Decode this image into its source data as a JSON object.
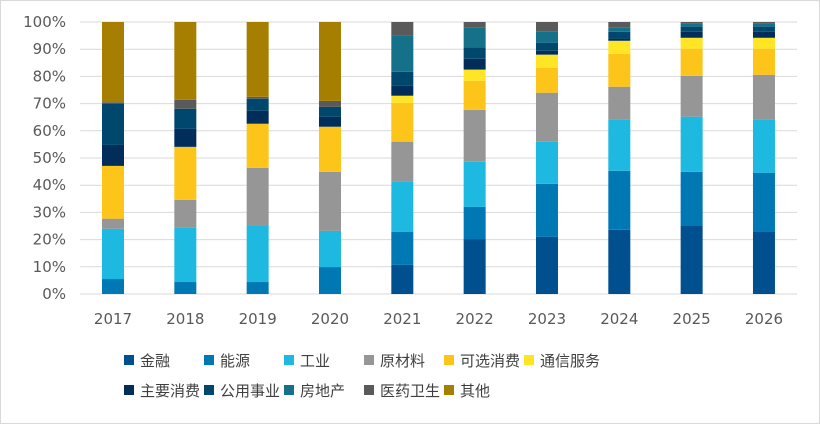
{
  "chart_data": {
    "type": "bar",
    "stacked": true,
    "percent": true,
    "categories": [
      "2017",
      "2018",
      "2019",
      "2020",
      "2021",
      "2022",
      "2023",
      "2024",
      "2025",
      "2026"
    ],
    "ylim": [
      0,
      100
    ],
    "yticks": [
      "0%",
      "10%",
      "20%",
      "30%",
      "40%",
      "50%",
      "60%",
      "70%",
      "80%",
      "90%",
      "100%"
    ],
    "grid": true,
    "legend_position": "bottom",
    "series": [
      {
        "name": "金融",
        "color": "#00508F",
        "values": [
          0,
          0,
          0,
          0,
          10.7,
          20.2,
          21,
          23.6,
          25,
          22.8
        ]
      },
      {
        "name": "能源",
        "color": "#0078B4",
        "values": [
          5.5,
          4.4,
          4.4,
          9.9,
          12.1,
          11.8,
          19.5,
          21.7,
          19.9,
          21.7
        ]
      },
      {
        "name": "工业",
        "color": "#1EB9E1",
        "values": [
          18.5,
          19.9,
          20.6,
          13.3,
          18.4,
          16.6,
          15.5,
          18.7,
          20.3,
          19.5
        ]
      },
      {
        "name": "原材料",
        "color": "#969696",
        "values": [
          3.7,
          10.3,
          21.4,
          21.7,
          14.8,
          19.1,
          18,
          12.2,
          15,
          16.6
        ]
      },
      {
        "name": "可选消费",
        "color": "#FDC41A",
        "values": [
          19.4,
          19.5,
          16.2,
          16.6,
          14.3,
          10.7,
          9.2,
          12.1,
          10,
          9.6
        ]
      },
      {
        "name": "通信服务",
        "color": "#FFE523",
        "values": [
          0,
          0,
          0,
          0,
          2.6,
          4.1,
          4.8,
          4.8,
          4,
          4
        ]
      },
      {
        "name": "主要消费",
        "color": "#002D5A",
        "values": [
          7.7,
          6.6,
          4.8,
          3.7,
          3.7,
          4,
          1.4,
          0.8,
          2.2,
          2.2
        ]
      },
      {
        "name": "公用事业",
        "color": "#00476E",
        "values": [
          15.2,
          7.4,
          4.4,
          3.6,
          5.1,
          4.1,
          3,
          2.5,
          1.9,
          1.9
        ]
      },
      {
        "name": "房地产",
        "color": "#157089",
        "values": [
          0,
          0,
          0,
          0,
          13.3,
          7.3,
          4,
          1.5,
          1.1,
          1.1
        ]
      },
      {
        "name": "医药卫生",
        "color": "#5A5A5A",
        "values": [
          0.5,
          3.3,
          0.7,
          2.2,
          5,
          2.1,
          3.6,
          2.1,
          0.6,
          0.6
        ]
      },
      {
        "name": "其他",
        "color": "#A67F00",
        "values": [
          29.5,
          28.6,
          27.5,
          29,
          0,
          0,
          0,
          0,
          0,
          0
        ]
      }
    ]
  }
}
